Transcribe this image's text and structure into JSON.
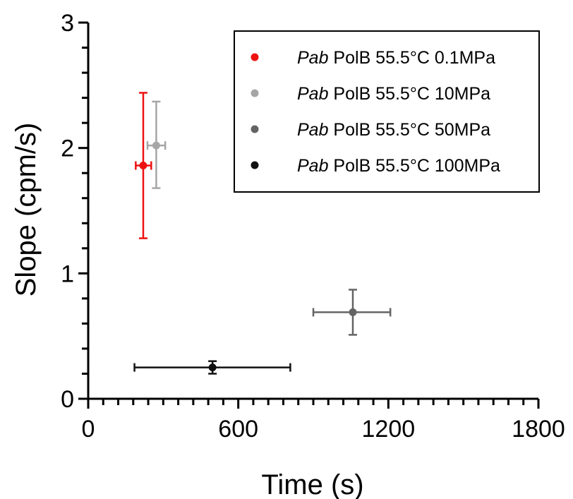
{
  "chart_data": {
    "type": "scatter",
    "xlabel": "Time (s)",
    "ylabel": "Slope (cpm/s)",
    "xlim": [
      0,
      1800
    ],
    "ylim": [
      0,
      3
    ],
    "x_ticks": [
      0,
      600,
      1200,
      1800
    ],
    "x_tick_labels": [
      "0",
      "600",
      "1200",
      "1800"
    ],
    "y_ticks": [
      0,
      1,
      2,
      3
    ],
    "y_tick_labels": [
      "0",
      "1",
      "2",
      "3"
    ],
    "x_minor_step": 60,
    "y_minor_step": 0.2,
    "grid": false,
    "legend_position": "top-right",
    "series": [
      {
        "name_italic": "Pab",
        "name_rest": " PolB 55.5°C 0.1MPa",
        "color": "#ee1111",
        "x": 220,
        "y": 1.86,
        "x_err": [
          190,
          252
        ],
        "y_err": [
          1.28,
          2.44
        ]
      },
      {
        "name_italic": "Pab",
        "name_rest": " PolB 55.5°C 10MPa",
        "color": "#a6a6a6",
        "x": 272,
        "y": 2.02,
        "x_err": [
          237,
          308
        ],
        "y_err": [
          1.68,
          2.37
        ]
      },
      {
        "name_italic": "Pab",
        "name_rest": " PolB 55.5°C 50MPa",
        "color": "#646464",
        "x": 1058,
        "y": 0.69,
        "x_err": [
          900,
          1208
        ],
        "y_err": [
          0.51,
          0.87
        ]
      },
      {
        "name_italic": "Pab",
        "name_rest": " PolB 55.5°C 100MPa",
        "color": "#111111",
        "x": 497,
        "y": 0.25,
        "x_err": [
          185,
          808
        ],
        "y_err": [
          0.2,
          0.3
        ]
      }
    ]
  }
}
